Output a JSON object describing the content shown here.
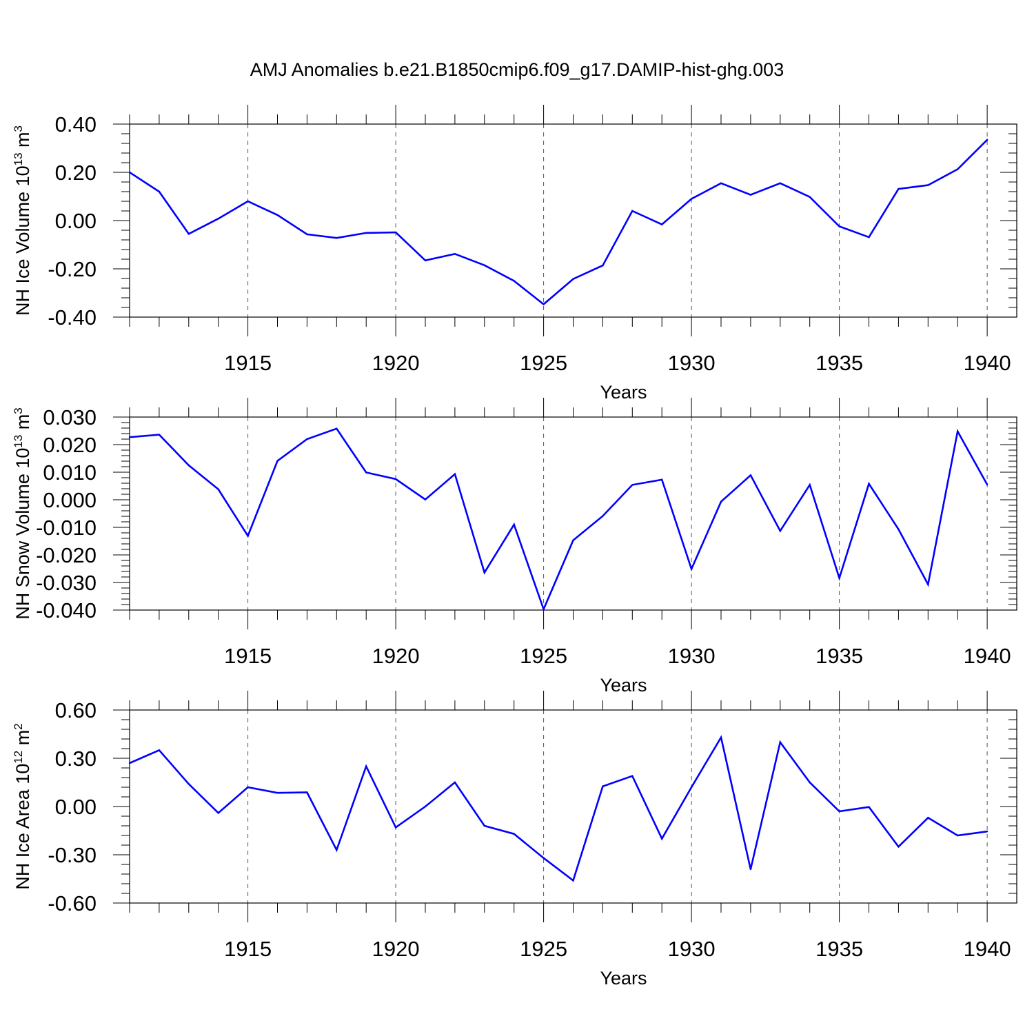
{
  "title": "AMJ Anomalies b.e21.B1850cmip6.f09_g17.DAMIP-hist-ghg.003",
  "colors": {
    "line": "#0000ff",
    "axis": "#000000",
    "grid": "#555555"
  },
  "chart_data": [
    {
      "type": "line",
      "title": "",
      "ylabel_prefix": "NH Ice Volume 10",
      "ylabel_exp": "13",
      "ylabel_unit": " m",
      "ylabel_unit_exp": "3",
      "xlabel": "Years",
      "xlim": [
        1911,
        1941
      ],
      "ylim": [
        -0.4,
        0.4
      ],
      "yticks": [
        "0.40",
        "0.20",
        "0.00",
        "-0.20",
        "-0.40"
      ],
      "ytick_values": [
        0.4,
        0.2,
        0.0,
        -0.2,
        -0.4
      ],
      "xticks": [
        "1915",
        "1920",
        "1925",
        "1930",
        "1935",
        "1940"
      ],
      "xtick_values": [
        1915,
        1920,
        1925,
        1930,
        1935,
        1940
      ],
      "grid": "vertical dashed at major x ticks",
      "x": [
        1911,
        1912,
        1913,
        1914,
        1915,
        1916,
        1917,
        1918,
        1919,
        1920,
        1921,
        1922,
        1923,
        1924,
        1925,
        1926,
        1927,
        1928,
        1929,
        1930,
        1931,
        1932,
        1933,
        1934,
        1935,
        1936,
        1937,
        1938,
        1939,
        1940
      ],
      "y": [
        0.2,
        0.12,
        -0.055,
        0.008,
        0.08,
        0.023,
        -0.057,
        -0.072,
        -0.051,
        -0.049,
        -0.165,
        -0.138,
        -0.185,
        -0.25,
        -0.347,
        -0.242,
        -0.186,
        0.04,
        -0.016,
        0.09,
        0.155,
        0.107,
        0.155,
        0.098,
        -0.024,
        -0.069,
        0.131,
        0.147,
        0.213,
        0.335
      ]
    },
    {
      "type": "line",
      "title": "",
      "ylabel_prefix": "NH Snow Volume 10",
      "ylabel_exp": "13",
      "ylabel_unit": " m",
      "ylabel_unit_exp": "3",
      "xlabel": "Years",
      "xlim": [
        1911,
        1941
      ],
      "ylim": [
        -0.04,
        0.03
      ],
      "yticks": [
        "0.030",
        "0.020",
        "0.010",
        "0.000",
        "-0.010",
        "-0.020",
        "-0.030",
        "-0.040"
      ],
      "ytick_values": [
        0.03,
        0.02,
        0.01,
        0.0,
        -0.01,
        -0.02,
        -0.03,
        -0.04
      ],
      "xticks": [
        "1915",
        "1920",
        "1925",
        "1930",
        "1935",
        "1940"
      ],
      "xtick_values": [
        1915,
        1920,
        1925,
        1930,
        1935,
        1940
      ],
      "grid": "vertical dashed at major x ticks",
      "x": [
        1911,
        1912,
        1913,
        1914,
        1915,
        1916,
        1917,
        1918,
        1919,
        1920,
        1921,
        1922,
        1923,
        1924,
        1925,
        1926,
        1927,
        1928,
        1929,
        1930,
        1931,
        1932,
        1933,
        1934,
        1935,
        1936,
        1937,
        1938,
        1939,
        1940
      ],
      "y": [
        0.0227,
        0.0236,
        0.0125,
        0.0038,
        -0.0131,
        0.0141,
        0.022,
        0.0258,
        0.0099,
        0.0075,
        0.0001,
        0.0093,
        -0.0264,
        -0.009,
        -0.0397,
        -0.0147,
        -0.0059,
        0.0054,
        0.0073,
        -0.0251,
        -0.0007,
        0.0089,
        -0.0113,
        0.0054,
        -0.0284,
        0.0058,
        -0.0107,
        -0.0307,
        0.0248,
        0.0055
      ]
    },
    {
      "type": "line",
      "title": "",
      "ylabel_prefix": "NH Ice Area 10",
      "ylabel_exp": "12",
      "ylabel_unit": " m",
      "ylabel_unit_exp": "2",
      "xlabel": "Years",
      "xlim": [
        1911,
        1941
      ],
      "ylim": [
        -0.6,
        0.6
      ],
      "yticks": [
        "0.60",
        "0.30",
        "0.00",
        "-0.30",
        "-0.60"
      ],
      "ytick_values": [
        0.6,
        0.3,
        0.0,
        -0.3,
        -0.6
      ],
      "xticks": [
        "1915",
        "1920",
        "1925",
        "1930",
        "1935",
        "1940"
      ],
      "xtick_values": [
        1915,
        1920,
        1925,
        1930,
        1935,
        1940
      ],
      "grid": "vertical dashed at major x ticks",
      "x": [
        1911,
        1912,
        1913,
        1914,
        1915,
        1916,
        1917,
        1918,
        1919,
        1920,
        1921,
        1922,
        1923,
        1924,
        1925,
        1926,
        1927,
        1928,
        1929,
        1930,
        1931,
        1932,
        1933,
        1934,
        1935,
        1936,
        1937,
        1938,
        1939,
        1940
      ],
      "y": [
        0.27,
        0.35,
        0.14,
        -0.04,
        0.12,
        0.085,
        0.088,
        -0.27,
        0.25,
        -0.13,
        0.0,
        0.15,
        -0.12,
        -0.17,
        -0.32,
        -0.46,
        0.125,
        0.19,
        -0.2,
        0.12,
        0.43,
        -0.39,
        0.4,
        0.15,
        -0.03,
        -0.003,
        -0.25,
        -0.07,
        -0.18,
        -0.155
      ]
    }
  ]
}
